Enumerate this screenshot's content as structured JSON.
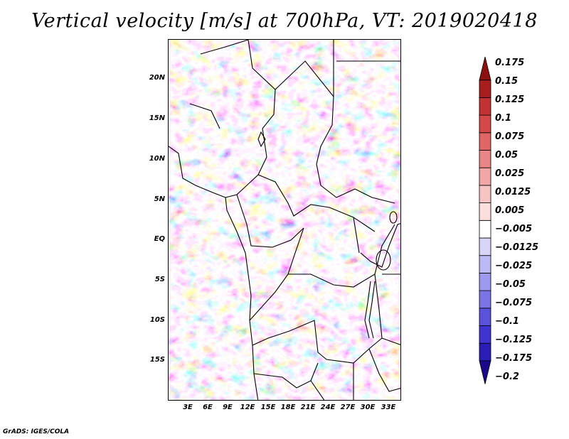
{
  "title": "Vertical velocity [m/s] at 700hPa, VT: 2019020418",
  "credit": "GrADS: IGES/COLA",
  "map": {
    "lon_range": [
      0,
      35
    ],
    "lat_range": [
      -20,
      25
    ],
    "lat_labels": [
      "20N",
      "15N",
      "10N",
      "5N",
      "EQ",
      "5S",
      "10S",
      "15S"
    ],
    "lon_labels": [
      "3E",
      "6E",
      "9E",
      "12E",
      "15E",
      "18E",
      "21E",
      "24E",
      "27E",
      "30E",
      "33E"
    ]
  },
  "colorbar": {
    "colors": [
      "#1a0a8a",
      "#2a1db5",
      "#3f34d0",
      "#5a52dd",
      "#7a74e6",
      "#9d99ee",
      "#bcb9f4",
      "#d8d6f8",
      "#ffffff",
      "#fbdede",
      "#f7c4c4",
      "#f2a6a6",
      "#ea8585",
      "#e06666",
      "#d44848",
      "#c23232",
      "#a81e1e",
      "#8c1010"
    ],
    "labels": [
      "0.175",
      "0.15",
      "0.125",
      "0.1",
      "0.075",
      "0.05",
      "0.025",
      "0.0125",
      "0.005",
      "−0.005",
      "−0.0125",
      "−0.025",
      "−0.05",
      "−0.075",
      "−0.1",
      "−0.125",
      "−0.175",
      "−0.2"
    ]
  }
}
